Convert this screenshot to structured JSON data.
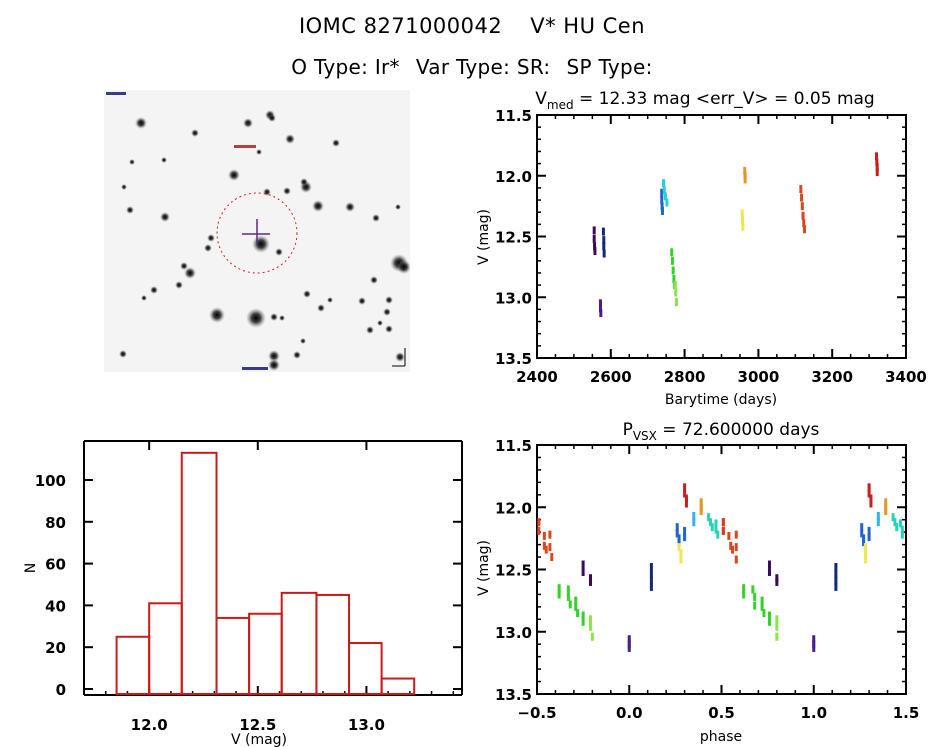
{
  "header": {
    "object_id": "IOMC 8271000042",
    "object_name": "V* HU Cen",
    "o_type": "O Type: Ir*",
    "var_type": "Var Type: SR:",
    "sp_type": "SP Type:"
  },
  "image_panel": {
    "description": "Inverted-gray star field finder chart with red dotted aperture circle centered on target and purple crosshair",
    "marker_color": "#5a2d82",
    "aperture_color": "#cc2222"
  },
  "chart_data": [
    {
      "id": "light-curve",
      "type": "scatter",
      "title_main": "V",
      "title_sub": "med",
      "title_rest": " = 12.33 mag <err_V> = 0.05 mag",
      "xlabel": "Barytime (days)",
      "ylabel": "V (mag)",
      "xlim": [
        2400,
        3400
      ],
      "ylim": [
        11.5,
        13.5
      ],
      "y_inverted": true,
      "xticks": [
        2400,
        2600,
        2800,
        3000,
        3200,
        3400
      ],
      "xtick_labels": [
        "2400",
        "2600",
        "2800",
        "3000",
        "3200",
        "3400"
      ],
      "yticks": [
        11.5,
        12.0,
        12.5,
        13.0,
        13.5
      ],
      "ytick_labels": [
        "11.5",
        "12.0",
        "12.5",
        "13.0",
        "13.5"
      ],
      "series": [
        {
          "name": "season-1a",
          "color": "#3c0a5a",
          "points": [
            [
              2555,
              12.45
            ],
            [
              2555,
              12.52
            ],
            [
              2556,
              12.58
            ],
            [
              2557,
              12.62
            ]
          ]
        },
        {
          "name": "season-1b",
          "color": "#142878",
          "points": [
            [
              2580,
              12.46
            ],
            [
              2581,
              12.53
            ],
            [
              2581,
              12.58
            ],
            [
              2582,
              12.64
            ]
          ]
        },
        {
          "name": "season-1c",
          "color": "#461e8c",
          "points": [
            [
              2572,
              13.05
            ],
            [
              2572,
              13.09
            ],
            [
              2573,
              13.13
            ]
          ]
        },
        {
          "name": "season-2a",
          "color": "#1e64d2",
          "points": [
            [
              2738,
              12.14
            ],
            [
              2738,
              12.2
            ],
            [
              2739,
              12.25
            ],
            [
              2740,
              12.29
            ]
          ]
        },
        {
          "name": "season-2b",
          "color": "#28d2d2",
          "points": [
            [
              2743,
              12.06
            ],
            [
              2745,
              12.12
            ],
            [
              2748,
              12.17
            ],
            [
              2752,
              12.22
            ]
          ]
        },
        {
          "name": "season-2c",
          "color": "#32d228",
          "points": [
            [
              2765,
              12.63
            ],
            [
              2767,
              12.7
            ],
            [
              2769,
              12.78
            ],
            [
              2771,
              12.85
            ],
            [
              2773,
              12.9
            ]
          ]
        },
        {
          "name": "season-2d",
          "color": "#8ce646",
          "points": [
            [
              2775,
              12.9
            ],
            [
              2776,
              12.96
            ],
            [
              2778,
              13.04
            ]
          ]
        },
        {
          "name": "season-3a",
          "color": "#f0e650",
          "points": [
            [
              2956,
              12.31
            ],
            [
              2957,
              12.36
            ],
            [
              2958,
              12.42
            ]
          ]
        },
        {
          "name": "season-3b",
          "color": "#e69628",
          "points": [
            [
              2963,
              11.96
            ],
            [
              2964,
              12.0
            ],
            [
              2964,
              12.03
            ]
          ]
        },
        {
          "name": "season-4",
          "color": "#dc461e",
          "points": [
            [
              3115,
              12.11
            ],
            [
              3117,
              12.18
            ],
            [
              3119,
              12.25
            ],
            [
              3121,
              12.33
            ],
            [
              3123,
              12.39
            ],
            [
              3125,
              12.44
            ]
          ]
        },
        {
          "name": "season-5",
          "color": "#c81e1e",
          "points": [
            [
              3320,
              11.84
            ],
            [
              3321,
              11.89
            ],
            [
              3322,
              11.93
            ],
            [
              3322,
              11.97
            ]
          ]
        }
      ]
    },
    {
      "id": "histogram",
      "type": "bar",
      "xlabel": "V (mag)",
      "ylabel": "N",
      "xlim": [
        11.7,
        13.44
      ],
      "ylim": [
        0,
        118
      ],
      "xticks": [
        12.0,
        12.5,
        13.0
      ],
      "xtick_labels": [
        "12.0",
        "12.5",
        "13.0"
      ],
      "yticks": [
        0,
        20,
        40,
        60,
        80,
        100
      ],
      "ytick_labels": [
        "0",
        "20",
        "40",
        "60",
        "80",
        "100"
      ],
      "bin_edges": [
        11.85,
        12.0,
        12.15,
        12.31,
        12.46,
        12.61,
        12.77,
        12.92,
        13.07,
        13.22
      ],
      "values": [
        25,
        41,
        113,
        34,
        36,
        46,
        45,
        22,
        5
      ],
      "bar_color": "#cc1a1a"
    },
    {
      "id": "phase-plot",
      "type": "scatter",
      "title_main": "P",
      "title_sub": "VSX",
      "title_rest": " = 72.600000 days",
      "xlabel": "phase",
      "ylabel": "V (mag)",
      "xlim": [
        -0.5,
        1.5
      ],
      "ylim": [
        11.5,
        13.5
      ],
      "y_inverted": true,
      "xticks": [
        -0.5,
        0.0,
        0.5,
        1.0,
        1.5
      ],
      "xtick_labels": [
        "−0.5",
        "0.0",
        "0.5",
        "1.0",
        "1.5"
      ],
      "yticks": [
        11.5,
        12.0,
        12.5,
        13.0,
        13.5
      ],
      "ytick_labels": [
        "11.5",
        "12.0",
        "12.5",
        "13.0",
        "13.5"
      ],
      "series": [
        {
          "name": "season-4",
          "color": "#dc461e",
          "points": [
            [
              -0.49,
              12.12
            ],
            [
              -0.49,
              12.19
            ],
            [
              -0.46,
              12.23
            ],
            [
              -0.46,
              12.31
            ],
            [
              -0.45,
              12.34
            ],
            [
              -0.43,
              12.22
            ],
            [
              -0.43,
              12.32
            ],
            [
              -0.42,
              12.4
            ],
            [
              0.51,
              12.12
            ],
            [
              0.51,
              12.19
            ],
            [
              0.54,
              12.23
            ],
            [
              0.55,
              12.31
            ],
            [
              0.56,
              12.34
            ],
            [
              0.58,
              12.22
            ],
            [
              0.58,
              12.32
            ],
            [
              0.58,
              12.42
            ]
          ]
        },
        {
          "name": "season-1a",
          "color": "#3c0a5a",
          "points": [
            [
              -0.25,
              12.46
            ],
            [
              -0.25,
              12.52
            ],
            [
              -0.21,
              12.57
            ],
            [
              -0.21,
              12.6
            ],
            [
              0.76,
              12.46
            ],
            [
              0.76,
              12.52
            ],
            [
              0.8,
              12.57
            ],
            [
              0.8,
              12.6
            ]
          ]
        },
        {
          "name": "season-2c",
          "color": "#32d228",
          "points": [
            [
              -0.38,
              12.65
            ],
            [
              -0.38,
              12.7
            ],
            [
              -0.33,
              12.66
            ],
            [
              -0.33,
              12.72
            ],
            [
              -0.32,
              12.78
            ],
            [
              -0.29,
              12.75
            ],
            [
              -0.29,
              12.8
            ],
            [
              -0.28,
              12.85
            ],
            [
              -0.25,
              12.87
            ],
            [
              -0.25,
              12.92
            ],
            [
              0.62,
              12.65
            ],
            [
              0.62,
              12.7
            ],
            [
              0.67,
              12.66
            ],
            [
              0.68,
              12.72
            ],
            [
              0.68,
              12.79
            ],
            [
              0.72,
              12.75
            ],
            [
              0.72,
              12.8
            ],
            [
              0.73,
              12.85
            ],
            [
              0.76,
              12.87
            ],
            [
              0.76,
              12.92
            ]
          ]
        },
        {
          "name": "season-2d",
          "color": "#8ce646",
          "points": [
            [
              -0.21,
              12.9
            ],
            [
              -0.21,
              12.96
            ],
            [
              -0.2,
              13.04
            ],
            [
              0.8,
              12.9
            ],
            [
              0.8,
              12.96
            ],
            [
              0.8,
              13.04
            ]
          ]
        },
        {
          "name": "season-1c",
          "color": "#461e8c",
          "points": [
            [
              0.0,
              13.06
            ],
            [
              0.0,
              13.1
            ],
            [
              0.0,
              13.13
            ],
            [
              1.0,
              13.06
            ],
            [
              1.0,
              13.1
            ],
            [
              1.0,
              13.13
            ]
          ]
        },
        {
          "name": "season-1b",
          "color": "#142878",
          "points": [
            [
              0.12,
              12.48
            ],
            [
              0.12,
              12.54
            ],
            [
              0.12,
              12.59
            ],
            [
              0.12,
              12.64
            ],
            [
              1.12,
              12.48
            ],
            [
              1.12,
              12.54
            ],
            [
              1.12,
              12.59
            ],
            [
              1.12,
              12.64
            ]
          ]
        },
        {
          "name": "season-2a",
          "color": "#1e64d2",
          "points": [
            [
              0.26,
              12.16
            ],
            [
              0.26,
              12.21
            ],
            [
              0.27,
              12.25
            ],
            [
              0.27,
              12.28
            ],
            [
              0.3,
              12.19
            ],
            [
              0.3,
              12.24
            ],
            [
              1.26,
              12.16
            ],
            [
              1.26,
              12.21
            ],
            [
              1.27,
              12.25
            ],
            [
              1.27,
              12.28
            ],
            [
              1.3,
              12.19
            ],
            [
              1.3,
              12.24
            ]
          ]
        },
        {
          "name": "season-3a",
          "color": "#f0e650",
          "points": [
            [
              0.27,
              12.32
            ],
            [
              0.28,
              12.37
            ],
            [
              0.28,
              12.42
            ],
            [
              1.28,
              12.32
            ],
            [
              1.28,
              12.37
            ],
            [
              1.28,
              12.42
            ]
          ]
        },
        {
          "name": "season-5",
          "color": "#c81e1e",
          "points": [
            [
              0.3,
              11.84
            ],
            [
              0.3,
              11.89
            ],
            [
              0.31,
              11.93
            ],
            [
              0.31,
              11.97
            ],
            [
              1.3,
              11.84
            ],
            [
              1.3,
              11.89
            ],
            [
              1.31,
              11.93
            ],
            [
              1.31,
              11.97
            ]
          ]
        },
        {
          "name": "season-3b",
          "color": "#e69628",
          "points": [
            [
              0.39,
              11.96
            ],
            [
              0.39,
              12.0
            ],
            [
              0.39,
              12.03
            ],
            [
              1.39,
              11.96
            ],
            [
              1.39,
              12.0
            ],
            [
              1.39,
              12.03
            ]
          ]
        },
        {
          "name": "season-2b-cyan",
          "color": "#32b4e6",
          "points": [
            [
              0.35,
              12.07
            ],
            [
              0.35,
              12.12
            ],
            [
              1.35,
              12.07
            ],
            [
              1.35,
              12.12
            ]
          ]
        },
        {
          "name": "season-2b",
          "color": "#28d2b4",
          "points": [
            [
              0.43,
              12.08
            ],
            [
              0.44,
              12.12
            ],
            [
              0.45,
              12.16
            ],
            [
              0.47,
              12.13
            ],
            [
              0.47,
              12.18
            ],
            [
              0.48,
              12.22
            ],
            [
              1.43,
              12.08
            ],
            [
              1.44,
              12.12
            ],
            [
              1.45,
              12.16
            ],
            [
              1.47,
              12.13
            ],
            [
              1.48,
              12.18
            ],
            [
              1.48,
              12.22
            ]
          ]
        },
        {
          "name": "season-4-red",
          "color": "#dc3c1e",
          "points": [
            [
              0.51,
              12.12
            ],
            [
              0.51,
              12.19
            ]
          ]
        }
      ]
    }
  ]
}
